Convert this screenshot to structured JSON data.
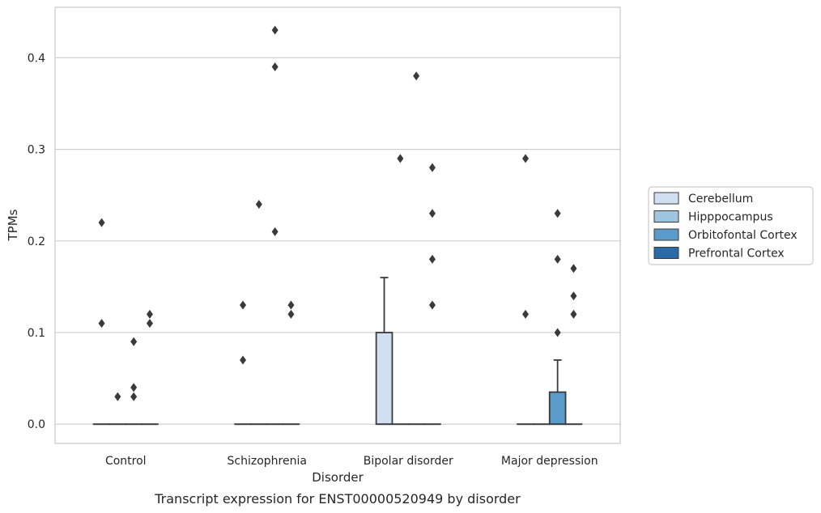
{
  "chart_data": {
    "type": "box",
    "title": "",
    "caption": "Transcript expression for ENST00000520949 by disorder",
    "xlabel": "Disorder",
    "ylabel": "TPMs",
    "categories": [
      "Control",
      "Schizophrenia",
      "Bipolar disorder",
      "Major depression"
    ],
    "ylim": [
      -0.021,
      0.455
    ],
    "yticks": [
      0.0,
      0.1,
      0.2,
      0.3,
      0.4
    ],
    "ytick_labels": [
      "0.0",
      "0.1",
      "0.2",
      "0.3",
      "0.4"
    ],
    "grid": true,
    "legend_position": "right",
    "series": [
      {
        "name": "Cerebellum",
        "color": "#d0e0f2",
        "boxes": [
          {
            "q1": 0,
            "median": 0,
            "q3": 0,
            "whisker_low": 0,
            "whisker_high": 0,
            "outliers": [
              0.22,
              0.11
            ]
          },
          {
            "q1": 0,
            "median": 0,
            "q3": 0,
            "whisker_low": 0,
            "whisker_high": 0,
            "outliers": [
              0.13,
              0.07
            ]
          },
          {
            "q1": 0,
            "median": 0,
            "q3": 0.1,
            "whisker_low": 0,
            "whisker_high": 0.16,
            "outliers": []
          },
          {
            "q1": 0,
            "median": 0,
            "q3": 0,
            "whisker_low": 0,
            "whisker_high": 0,
            "outliers": [
              0.29,
              0.12
            ]
          }
        ]
      },
      {
        "name": "Hipppocampus",
        "color": "#9ec5de",
        "boxes": [
          {
            "q1": 0,
            "median": 0,
            "q3": 0,
            "whisker_low": 0,
            "whisker_high": 0,
            "outliers": [
              0.03
            ]
          },
          {
            "q1": 0,
            "median": 0,
            "q3": 0,
            "whisker_low": 0,
            "whisker_high": 0,
            "outliers": [
              0.24
            ]
          },
          {
            "q1": 0,
            "median": 0,
            "q3": 0,
            "whisker_low": 0,
            "whisker_high": 0,
            "outliers": [
              0.29
            ]
          },
          {
            "q1": 0,
            "median": 0,
            "q3": 0,
            "whisker_low": 0,
            "whisker_high": 0,
            "outliers": []
          }
        ]
      },
      {
        "name": "Orbitofontal Cortex",
        "color": "#5a9bc9",
        "boxes": [
          {
            "q1": 0,
            "median": 0,
            "q3": 0,
            "whisker_low": 0,
            "whisker_high": 0,
            "outliers": [
              0.09,
              0.04,
              0.03
            ]
          },
          {
            "q1": 0,
            "median": 0,
            "q3": 0,
            "whisker_low": 0,
            "whisker_high": 0,
            "outliers": [
              0.43,
              0.39,
              0.21
            ]
          },
          {
            "q1": 0,
            "median": 0,
            "q3": 0,
            "whisker_low": 0,
            "whisker_high": 0,
            "outliers": [
              0.38
            ]
          },
          {
            "q1": 0,
            "median": 0,
            "q3": 0.035,
            "whisker_low": 0,
            "whisker_high": 0.07,
            "outliers": [
              0.23,
              0.18,
              0.1
            ]
          }
        ]
      },
      {
        "name": "Prefrontal Cortex",
        "color": "#2a6aa6",
        "boxes": [
          {
            "q1": 0,
            "median": 0,
            "q3": 0,
            "whisker_low": 0,
            "whisker_high": 0,
            "outliers": [
              0.12,
              0.11
            ]
          },
          {
            "q1": 0,
            "median": 0,
            "q3": 0,
            "whisker_low": 0,
            "whisker_high": 0,
            "outliers": [
              0.13,
              0.12
            ]
          },
          {
            "q1": 0,
            "median": 0,
            "q3": 0,
            "whisker_low": 0,
            "whisker_high": 0,
            "outliers": [
              0.28,
              0.23,
              0.18,
              0.13
            ]
          },
          {
            "q1": 0,
            "median": 0,
            "q3": 0,
            "whisker_low": 0,
            "whisker_high": 0,
            "outliers": [
              0.17,
              0.14,
              0.12
            ]
          }
        ]
      }
    ]
  }
}
